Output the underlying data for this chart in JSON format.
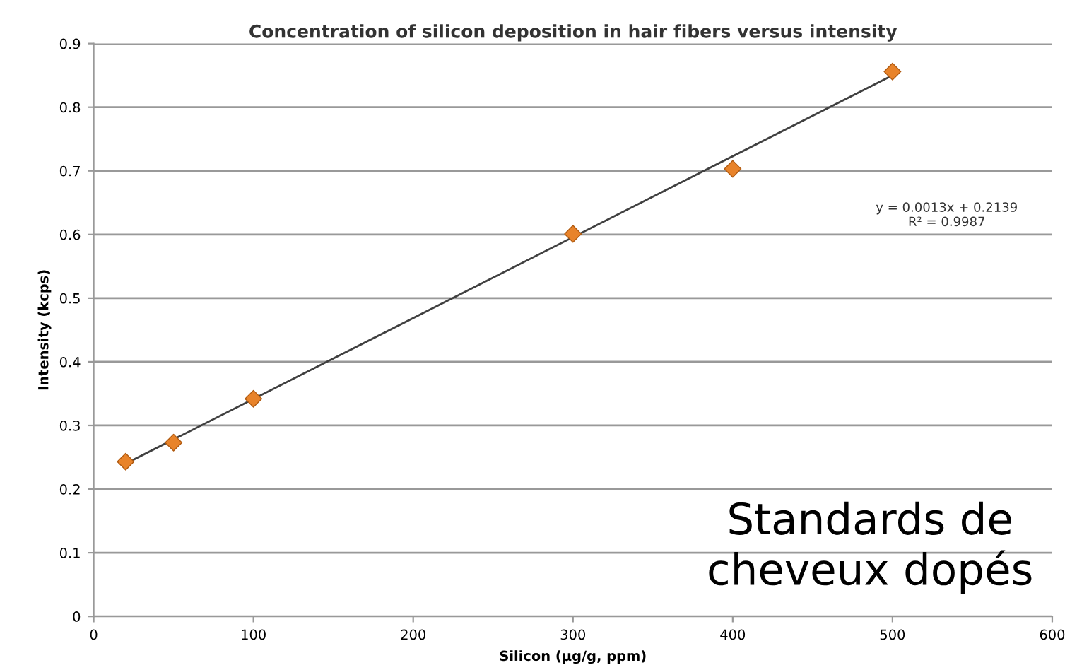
{
  "chart_data": {
    "type": "scatter",
    "title": "Concentration of silicon deposition in hair fibers versus intensity",
    "xlabel": "Silicon (µg/g, ppm)",
    "ylabel": "Intensity (kcps)",
    "series": [
      {
        "color": "#e8832a",
        "x": [
          20,
          50,
          100,
          300,
          400,
          500
        ],
        "values": [
          0.243,
          0.273,
          0.342,
          0.601,
          0.703,
          0.856
        ],
        "marker": "diamond"
      },
      {
        "type": "line",
        "color": "#404040",
        "x": [
          20,
          500
        ],
        "values": [
          0.24,
          0.85
        ],
        "line_style": "solid"
      }
    ],
    "xlim": [
      0,
      600
    ],
    "xticks": [
      0,
      100,
      200,
      300,
      400,
      500,
      600
    ],
    "ylim": [
      0,
      0.9
    ],
    "yticks": [
      0,
      0.1,
      0.2,
      0.3,
      0.4,
      0.5,
      0.6,
      0.7,
      0.8,
      0.9
    ],
    "grid": "y",
    "annotations": [
      "y = 0.0013x + 0.2139\nR² = 0.9987",
      "Standards de\ncheveux dopés"
    ]
  }
}
